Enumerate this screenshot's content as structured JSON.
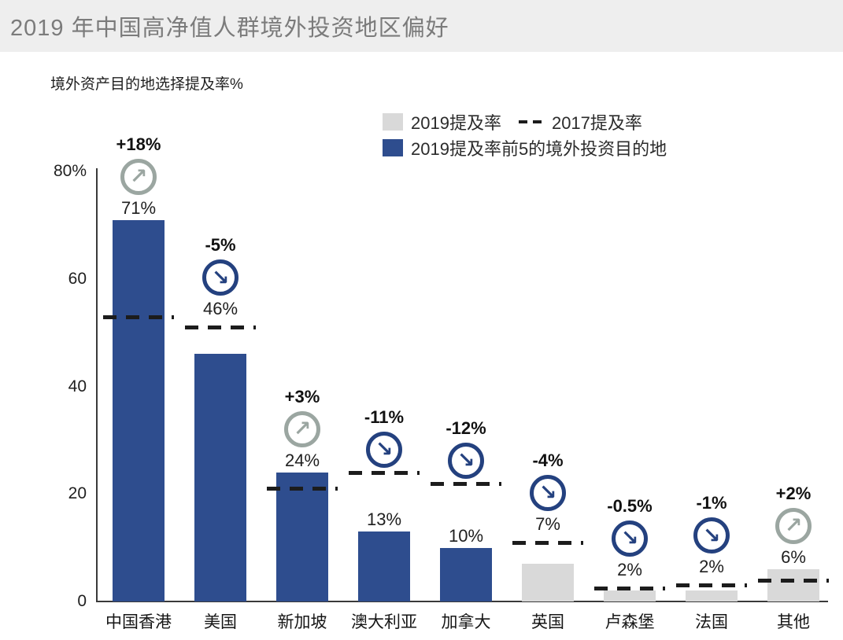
{
  "header": {
    "title": "2019 年中国高净值人群境外投资地区偏好"
  },
  "chart_data": {
    "type": "bar",
    "title": "2019 年中国高净值人群境外投资地区偏好",
    "axis_title": "境外资产目的地选择提及率%",
    "ylabel": "境外资产目的地选择提及率%",
    "xlabel": "",
    "ylim": [
      0,
      80
    ],
    "yticks": [
      80,
      60,
      40,
      20,
      0
    ],
    "ytick_top_label": "80%",
    "grid": false,
    "legend_position": "top-right",
    "legend": {
      "mention_2019": "2019提及率",
      "mention_2017": "2017提及率",
      "top5": "2019提及率前5的境外投资目的地"
    },
    "categories": [
      "中国香港",
      "美国",
      "新加坡",
      "澳大利亚",
      "加拿大",
      "英国",
      "卢森堡",
      "法国",
      "其他"
    ],
    "series": [
      {
        "name": "2019提及率",
        "style": "bar",
        "values": [
          71,
          46,
          24,
          13,
          10,
          7,
          2,
          2,
          6
        ],
        "labels": [
          "71%",
          "46%",
          "24%",
          "13%",
          "10%",
          "7%",
          "2%",
          "2%",
          "6%"
        ]
      },
      {
        "name": "2017提及率",
        "style": "dashed-line",
        "values": [
          53,
          51,
          21,
          24,
          22,
          11,
          2.5,
          3,
          4
        ]
      }
    ],
    "change_vs_2017": {
      "labels": [
        "+18%",
        "-5%",
        "+3%",
        "-11%",
        "-12%",
        "-4%",
        "-0.5%",
        "-1%",
        "+2%"
      ],
      "trend": [
        "up",
        "down",
        "up",
        "down",
        "down",
        "down",
        "down",
        "down",
        "up"
      ]
    },
    "top5_mask": [
      true,
      true,
      true,
      true,
      true,
      false,
      false,
      false,
      false
    ],
    "icons": {
      "up": "↗",
      "down": "↘"
    },
    "colors": {
      "bar_top5": "#2e4d8e",
      "bar_other": "#d9d9d9",
      "dash_2017": "#1c1c1c",
      "trend_up": "#9ba6a1",
      "trend_down": "#24417f",
      "header_bg": "#eeeeee",
      "header_text": "#7b7b7b"
    }
  }
}
